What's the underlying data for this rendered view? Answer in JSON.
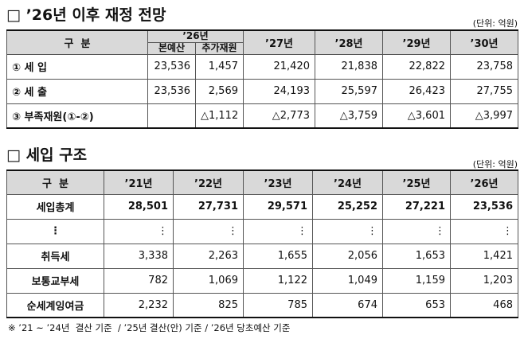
{
  "section1": {
    "title": "□ ’26년 이후 재정 전망",
    "unit": "(단위: 억원)",
    "table": {
      "header": {
        "category": "구  분",
        "group": "’26년",
        "subheaders": [
          "본예산",
          "추가재원"
        ],
        "years": [
          "’27년",
          "’28년",
          "’29년",
          "’30년"
        ]
      },
      "rows": [
        {
          "label": "① 세 입",
          "cells": [
            "23,536",
            "1,457",
            "21,420",
            "21,838",
            "22,822",
            "23,758"
          ]
        },
        {
          "label": "② 세 출",
          "cells": [
            "23,536",
            "2,569",
            "24,193",
            "25,597",
            "26,423",
            "27,755"
          ]
        },
        {
          "label": "③ 부족재원(①-②)",
          "cells": [
            null,
            "△1,112",
            "△2,773",
            "△3,759",
            "△3,601",
            "△3,997"
          ]
        }
      ]
    }
  },
  "section2": {
    "title": "□ 세입 구조",
    "unit": "(단위: 억원)",
    "table": {
      "header": [
        "구  분",
        "’21년",
        "’22년",
        "’23년",
        "’24년",
        "’25년",
        "’26년"
      ],
      "rows": [
        [
          "세입총계",
          "28,501",
          "27,731",
          "29,571",
          "25,252",
          "27,221",
          "23,536"
        ],
        [
          "⋮",
          "⋮",
          "⋮",
          "⋮",
          "⋮",
          "⋮",
          "⋮"
        ],
        [
          "취득세",
          "3,338",
          "2,263",
          "1,655",
          "2,056",
          "1,653",
          "1,421"
        ],
        [
          "보통교부세",
          "782",
          "1,069",
          "1,122",
          "1,049",
          "1,159",
          "1,203"
        ],
        [
          "순세계잉여금",
          "2,232",
          "825",
          "785",
          "674",
          "653",
          "468"
        ]
      ]
    }
  },
  "footnote": "※ ’21 ~ ’24년  결산 기준  / ’25년 결산(안) 기준 / ’26년 당초예산 기준"
}
